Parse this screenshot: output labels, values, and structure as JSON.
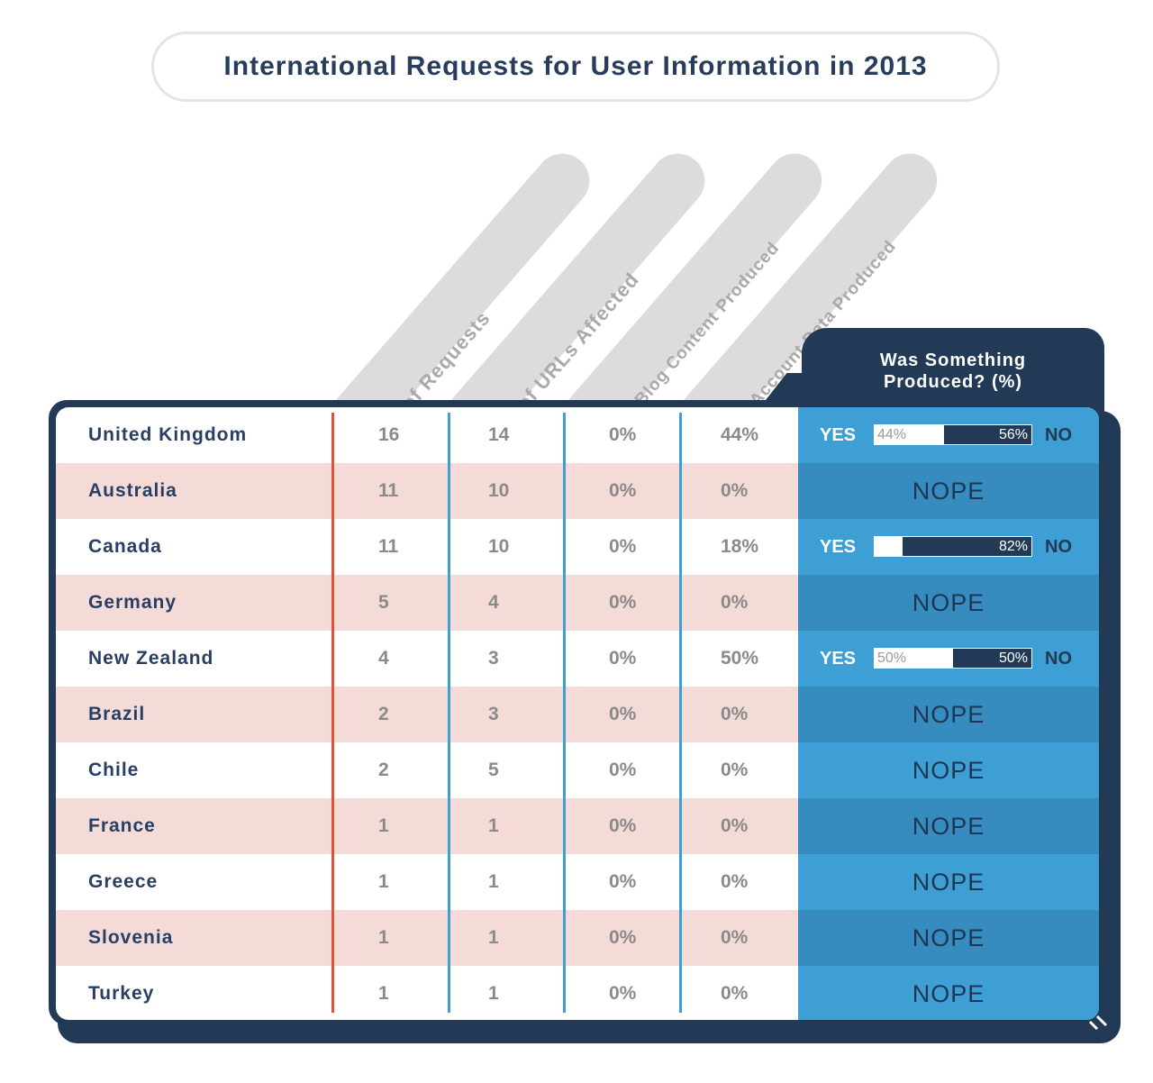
{
  "title": "International Requests for User Information in 2013",
  "columns": {
    "requests": "# of Requests",
    "urls": "# of URLs Affected",
    "blog": "% Blog Content Produced",
    "account": "% Account Data Produced",
    "produced": "Was Something Produced? (%)"
  },
  "labels": {
    "yes": "YES",
    "no": "NO",
    "nope": "NOPE"
  },
  "colors": {
    "navy": "#233a57",
    "blue": "#3d9fd3",
    "blue_alt": "#378cbf",
    "pink_row": "#f5dbd8",
    "divider_red": "#d9533d",
    "divider_blue": "#3d9fd3"
  },
  "chart_data": {
    "type": "table",
    "rows": [
      {
        "country": "United Kingdom",
        "requests": "16",
        "urls": "14",
        "blog": "0%",
        "account": "44%",
        "produced": {
          "yes": 44,
          "no": 56,
          "yes_label": "44%",
          "no_label": "56%"
        }
      },
      {
        "country": "Australia",
        "requests": "11",
        "urls": "10",
        "blog": "0%",
        "account": "0%",
        "produced": null
      },
      {
        "country": "Canada",
        "requests": "11",
        "urls": "10",
        "blog": "0%",
        "account": "18%",
        "produced": {
          "yes": 18,
          "no": 82,
          "yes_label": "",
          "no_label": "82%"
        }
      },
      {
        "country": "Germany",
        "requests": "5",
        "urls": "4",
        "blog": "0%",
        "account": "0%",
        "produced": null
      },
      {
        "country": "New Zealand",
        "requests": "4",
        "urls": "3",
        "blog": "0%",
        "account": "50%",
        "produced": {
          "yes": 50,
          "no": 50,
          "yes_label": "50%",
          "no_label": "50%"
        }
      },
      {
        "country": "Brazil",
        "requests": "2",
        "urls": "3",
        "blog": "0%",
        "account": "0%",
        "produced": null
      },
      {
        "country": "Chile",
        "requests": "2",
        "urls": "5",
        "blog": "0%",
        "account": "0%",
        "produced": null
      },
      {
        "country": "France",
        "requests": "1",
        "urls": "1",
        "blog": "0%",
        "account": "0%",
        "produced": null
      },
      {
        "country": "Greece",
        "requests": "1",
        "urls": "1",
        "blog": "0%",
        "account": "0%",
        "produced": null
      },
      {
        "country": "Slovenia",
        "requests": "1",
        "urls": "1",
        "blog": "0%",
        "account": "0%",
        "produced": null
      },
      {
        "country": "Turkey",
        "requests": "1",
        "urls": "1",
        "blog": "0%",
        "account": "0%",
        "produced": null
      }
    ]
  }
}
